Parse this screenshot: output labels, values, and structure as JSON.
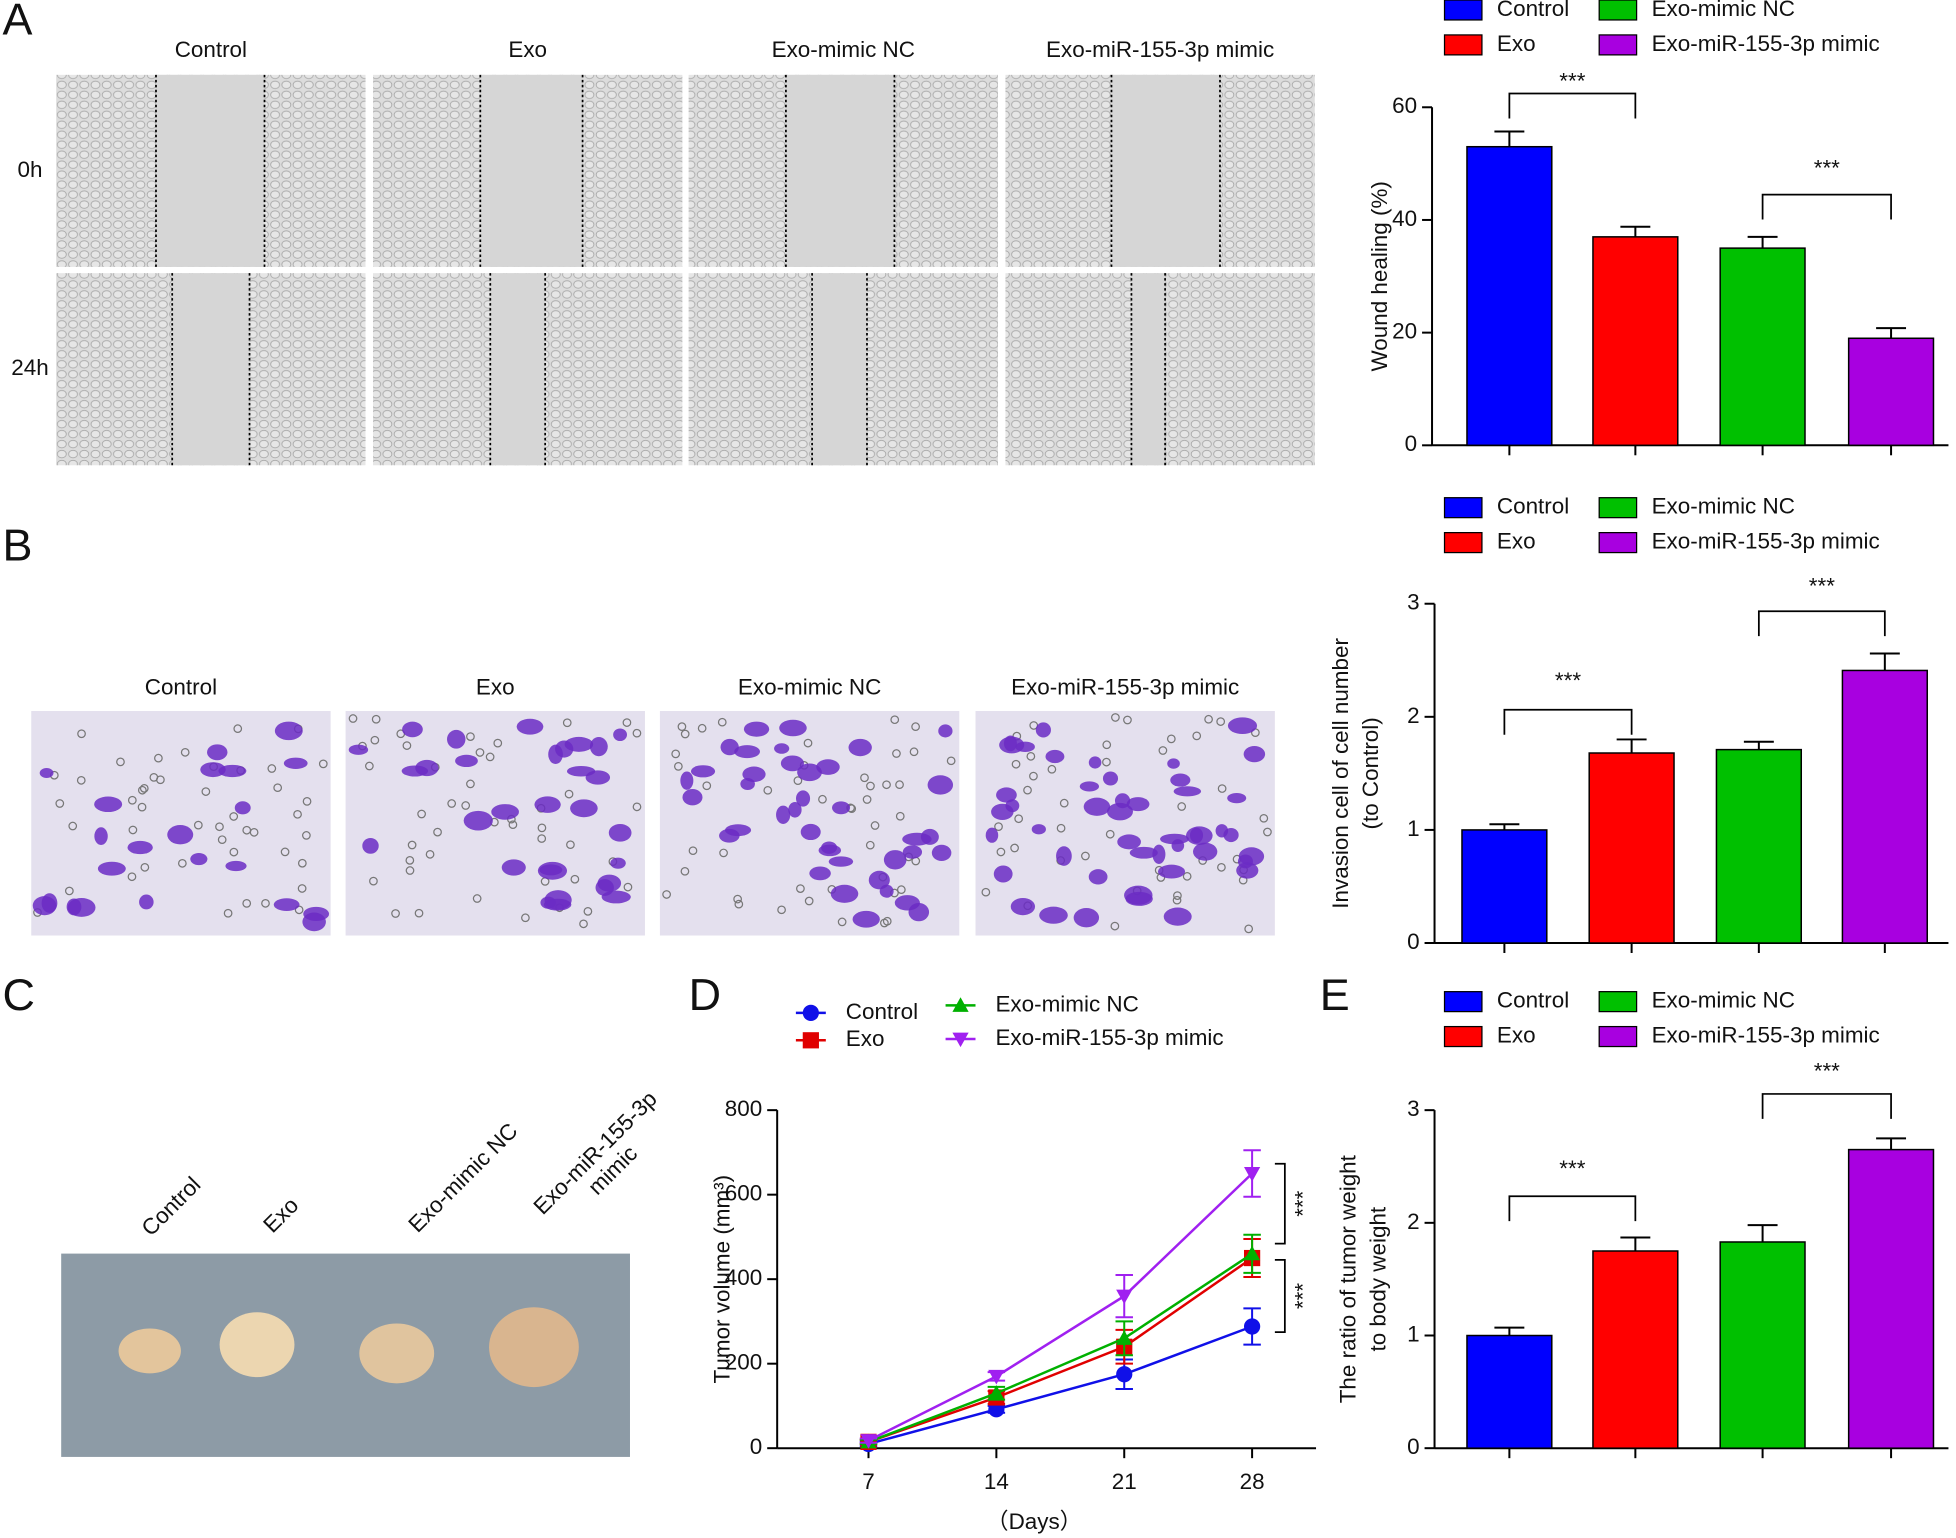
{
  "panels": {
    "A": {
      "letter": "A",
      "columns": [
        "Control",
        "Exo",
        "Exo-mimic NC",
        "Exo-miR-155-3p mimic"
      ],
      "rows": [
        "0h",
        "24h"
      ]
    },
    "B": {
      "letter": "B",
      "columns": [
        "Control",
        "Exo",
        "Exo-mimic NC",
        "Exo-miR-155-3p mimic"
      ]
    },
    "C": {
      "letter": "C",
      "labels": [
        [
          "Control"
        ],
        [
          "Exo"
        ],
        [
          "Exo-mimic NC"
        ],
        [
          "Exo-miR-155-3p",
          "mimic"
        ]
      ]
    },
    "D": {
      "letter": "D"
    },
    "E": {
      "letter": "E"
    }
  },
  "chart_data": [
    {
      "type": "bar",
      "ylabel": [
        "Wound healing (%)"
      ],
      "ylim": [
        0,
        60
      ],
      "yticks": [
        0,
        20,
        40,
        60
      ],
      "series": [
        {
          "name": "Control",
          "color": "#0000ff",
          "values": [
            53
          ],
          "errors": [
            2.7
          ]
        },
        {
          "name": "Exo",
          "color": "#ff0000",
          "values": [
            37
          ],
          "errors": [
            1.8
          ]
        },
        {
          "name": "Exo-mimic NC",
          "color": "#00c000",
          "values": [
            35
          ],
          "errors": [
            2
          ]
        },
        {
          "name": "Exo-miR-155-3p mimic",
          "color": "#a800e0",
          "values": [
            19
          ],
          "errors": [
            1.8
          ]
        }
      ],
      "annotations": [
        "***",
        "***"
      ]
    },
    {
      "type": "bar",
      "ylabel": [
        "Invasion cell of cell number",
        "(to Control)"
      ],
      "ylim": [
        0,
        3
      ],
      "yticks": [
        0,
        1,
        2,
        3
      ],
      "series": [
        {
          "name": "Control",
          "color": "#0000ff",
          "values": [
            1.0
          ],
          "errors": [
            0.05
          ]
        },
        {
          "name": "Exo",
          "color": "#ff0000",
          "values": [
            1.68
          ],
          "errors": [
            0.12
          ]
        },
        {
          "name": "Exo-mimic NC",
          "color": "#00c000",
          "values": [
            1.71
          ],
          "errors": [
            0.07
          ]
        },
        {
          "name": "Exo-miR-155-3p mimic",
          "color": "#a800e0",
          "values": [
            2.41
          ],
          "errors": [
            0.15
          ]
        }
      ],
      "annotations": [
        "***",
        "***"
      ]
    },
    {
      "type": "line",
      "ylabel": [
        "Tumor volume (mm³)"
      ],
      "xlabel": "（Days）",
      "x": [
        7,
        14,
        21,
        28
      ],
      "xlim": [
        2,
        31.5
      ],
      "xticks": [
        7,
        14,
        21,
        28
      ],
      "ylim": [
        0,
        800
      ],
      "yticks": [
        0,
        200,
        400,
        600,
        800
      ],
      "series": [
        {
          "name": "Control",
          "color": "#1010e8",
          "marker": "circle",
          "values": [
            10,
            92,
            175,
            288
          ],
          "errors": [
            5,
            8,
            35,
            43
          ]
        },
        {
          "name": "Exo",
          "color": "#e00000",
          "marker": "square",
          "values": [
            15,
            120,
            240,
            450
          ],
          "errors": [
            5,
            15,
            40,
            45
          ]
        },
        {
          "name": "Exo-mimic NC",
          "color": "#00b000",
          "marker": "triangle-up",
          "values": [
            15,
            130,
            260,
            460
          ],
          "errors": [
            5,
            15,
            40,
            45
          ]
        },
        {
          "name": "Exo-miR-155-3p mimic",
          "color": "#a020f0",
          "marker": "triangle-down",
          "values": [
            18,
            170,
            360,
            650
          ],
          "errors": [
            5,
            10,
            50,
            55
          ]
        }
      ],
      "annotations": [
        "***",
        "***"
      ]
    },
    {
      "type": "bar",
      "ylabel": [
        "The ratio of  tumor  weight",
        "to body  weight"
      ],
      "ylim": [
        0,
        3
      ],
      "yticks": [
        0,
        1,
        2,
        3
      ],
      "series": [
        {
          "name": "Control",
          "color": "#0000ff",
          "values": [
            1.0
          ],
          "errors": [
            0.07
          ]
        },
        {
          "name": "Exo",
          "color": "#ff0000",
          "values": [
            1.75
          ],
          "errors": [
            0.12
          ]
        },
        {
          "name": "Exo-mimic NC",
          "color": "#00c000",
          "values": [
            1.83
          ],
          "errors": [
            0.15
          ]
        },
        {
          "name": "Exo-miR-155-3p mimic",
          "color": "#a800e0",
          "values": [
            2.65
          ],
          "errors": [
            0.1
          ]
        }
      ],
      "annotations": [
        "***",
        "***"
      ]
    }
  ]
}
